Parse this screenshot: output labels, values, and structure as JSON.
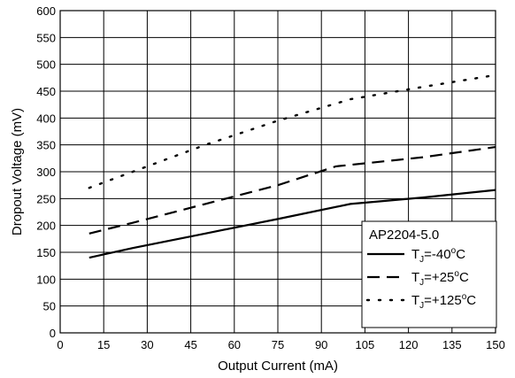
{
  "chart_data": {
    "type": "line",
    "xlabel": "Output Current (mA)",
    "ylabel": "Dropout Voltage (mV)",
    "xlim": [
      0,
      150
    ],
    "ylim": [
      0,
      600
    ],
    "xticks": [
      0,
      15,
      30,
      45,
      60,
      75,
      90,
      105,
      120,
      135,
      150
    ],
    "yticks": [
      0,
      50,
      100,
      150,
      200,
      250,
      300,
      350,
      400,
      450,
      500,
      550,
      600
    ],
    "grid": true,
    "legend": {
      "title": "AP2204-5.0",
      "placement": "bottom-right",
      "entries": [
        {
          "prefix": "T",
          "sub": "J",
          "suffix": "=-40",
          "degree": "o",
          "unit": "C",
          "style": "solid"
        },
        {
          "prefix": "T",
          "sub": "J",
          "suffix": "=+25",
          "degree": "o",
          "unit": "C",
          "style": "dashed"
        },
        {
          "prefix": "T",
          "sub": "J",
          "suffix": "=+125",
          "degree": "o",
          "unit": "C",
          "style": "dotted"
        }
      ]
    },
    "series": [
      {
        "style": "solid",
        "x": [
          10,
          25,
          50,
          75,
          100,
          125,
          150
        ],
        "y": [
          140,
          158,
          185,
          212,
          240,
          252,
          266
        ]
      },
      {
        "style": "dashed",
        "x": [
          10,
          25,
          50,
          75,
          95,
          125,
          150
        ],
        "y": [
          185,
          205,
          240,
          275,
          310,
          327,
          346
        ]
      },
      {
        "style": "dotted",
        "x": [
          10,
          25,
          50,
          75,
          100,
          125,
          150
        ],
        "y": [
          270,
          300,
          350,
          395,
          435,
          458,
          480
        ]
      }
    ]
  }
}
